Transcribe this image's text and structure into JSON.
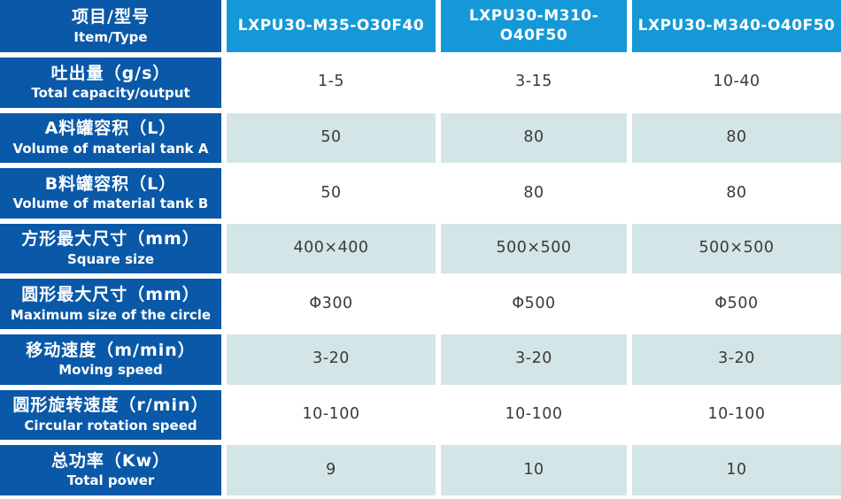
{
  "table": {
    "corner": {
      "zh": "项目/型号",
      "en": "Item/Type"
    },
    "models": [
      "LXPU30-M35-O30F40",
      "LXPU30-M310-O40F50",
      "LXPU30-M340-O40F50"
    ],
    "rows": [
      {
        "zh": "吐出量（g/s）",
        "en": "Total capacity/output",
        "values": [
          "1-5",
          "3-15",
          "10-40"
        ]
      },
      {
        "zh": "A料罐容积（L）",
        "en": "Volume of material tank A",
        "values": [
          "50",
          "80",
          "80"
        ]
      },
      {
        "zh": "B料罐容积（L）",
        "en": "Volume of material tank B",
        "values": [
          "50",
          "80",
          "80"
        ]
      },
      {
        "zh": "方形最大尺寸（mm）",
        "en": "Square size",
        "values": [
          "400×400",
          "500×500",
          "500×500"
        ]
      },
      {
        "zh": "圆形最大尺寸（mm）",
        "en": "Maximum size of the circle",
        "values": [
          "Φ300",
          "Φ500",
          "Φ500"
        ]
      },
      {
        "zh": "移动速度（m/min）",
        "en": "Moving speed",
        "values": [
          "3-20",
          "3-20",
          "3-20"
        ]
      },
      {
        "zh": "圆形旋转速度（r/min）",
        "en": "Circular rotation speed",
        "values": [
          "10-100",
          "10-100",
          "10-100"
        ]
      },
      {
        "zh": "总功率（Kw）",
        "en": "Total power",
        "values": [
          "9",
          "10",
          "10"
        ]
      }
    ]
  },
  "colors": {
    "label_bg": "#0a58a8",
    "model_bg": "#1598d7",
    "row_alt_bg": "#d4e5e7",
    "value_text": "#3a3a3a"
  }
}
